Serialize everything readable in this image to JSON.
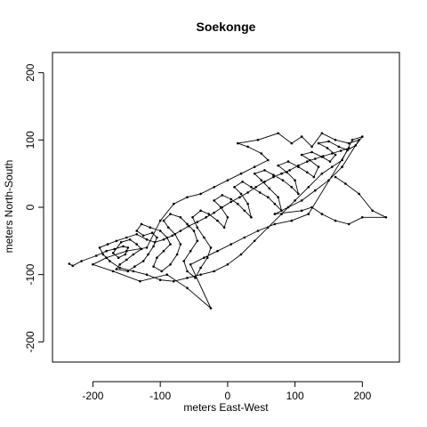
{
  "chart_data": {
    "type": "line",
    "title": "Soekonge",
    "xlabel": "meters East-West",
    "ylabel": "meters North-South",
    "xlim": [
      -260,
      255
    ],
    "ylim": [
      -230,
      230
    ],
    "xticks": [
      -200,
      -100,
      0,
      100,
      200
    ],
    "yticks": [
      -200,
      -100,
      0,
      100,
      200
    ],
    "grid": false,
    "legend": "none",
    "series": [
      {
        "style": "line-and-points",
        "color": "#000000",
        "points": [
          [
            -235,
            -84
          ],
          [
            -230,
            -87
          ],
          [
            -217,
            -80
          ],
          [
            -195,
            -72
          ],
          [
            -180,
            -65
          ],
          [
            -168,
            -62
          ],
          [
            -155,
            -58
          ],
          [
            -148,
            -60
          ],
          [
            -152,
            -70
          ],
          [
            -162,
            -75
          ],
          [
            -170,
            -68
          ],
          [
            -158,
            -52
          ],
          [
            -145,
            -48
          ],
          [
            -135,
            -55
          ],
          [
            -128,
            -62
          ],
          [
            -140,
            -70
          ],
          [
            -150,
            -78
          ],
          [
            -160,
            -85
          ],
          [
            -165,
            -92
          ],
          [
            -148,
            -95
          ],
          [
            -138,
            -88
          ],
          [
            -125,
            -80
          ],
          [
            -118,
            -70
          ],
          [
            -110,
            -58
          ],
          [
            -105,
            -45
          ],
          [
            -112,
            -38
          ],
          [
            -125,
            -42
          ],
          [
            -135,
            -35
          ],
          [
            -128,
            -25
          ],
          [
            -115,
            -30
          ],
          [
            -100,
            -35
          ],
          [
            -90,
            -45
          ],
          [
            -85,
            -55
          ],
          [
            -95,
            -65
          ],
          [
            -105,
            -75
          ],
          [
            -110,
            -88
          ],
          [
            -98,
            -95
          ],
          [
            -85,
            -85
          ],
          [
            -75,
            -70
          ],
          [
            -70,
            -55
          ],
          [
            -78,
            -40
          ],
          [
            -88,
            -30
          ],
          [
            -95,
            -20
          ],
          [
            -85,
            -10
          ],
          [
            -70,
            -15
          ],
          [
            -60,
            -25
          ],
          [
            -50,
            -35
          ],
          [
            -45,
            -50
          ],
          [
            -55,
            -65
          ],
          [
            -65,
            -80
          ],
          [
            -60,
            -95
          ],
          [
            -48,
            -105
          ],
          [
            -40,
            -90
          ],
          [
            -30,
            -75
          ],
          [
            -25,
            -60
          ],
          [
            -35,
            -45
          ],
          [
            -45,
            -30
          ],
          [
            -52,
            -15
          ],
          [
            -40,
            -5
          ],
          [
            -28,
            -10
          ],
          [
            -15,
            -20
          ],
          [
            -5,
            -30
          ],
          [
            0,
            -15
          ],
          [
            -10,
            0
          ],
          [
            -20,
            10
          ],
          [
            -8,
            18
          ],
          [
            5,
            12
          ],
          [
            15,
            5
          ],
          [
            25,
            -5
          ],
          [
            35,
            -15
          ],
          [
            30,
            5
          ],
          [
            20,
            20
          ],
          [
            10,
            30
          ],
          [
            22,
            38
          ],
          [
            35,
            30
          ],
          [
            48,
            22
          ],
          [
            60,
            15
          ],
          [
            70,
            5
          ],
          [
            80,
            -5
          ],
          [
            75,
            15
          ],
          [
            62,
            28
          ],
          [
            50,
            40
          ],
          [
            40,
            50
          ],
          [
            55,
            55
          ],
          [
            68,
            48
          ],
          [
            82,
            40
          ],
          [
            95,
            30
          ],
          [
            105,
            20
          ],
          [
            100,
            40
          ],
          [
            88,
            52
          ],
          [
            75,
            62
          ],
          [
            90,
            68
          ],
          [
            105,
            60
          ],
          [
            118,
            52
          ],
          [
            128,
            45
          ],
          [
            135,
            60
          ],
          [
            122,
            70
          ],
          [
            110,
            78
          ],
          [
            125,
            82
          ],
          [
            140,
            75
          ],
          [
            152,
            68
          ],
          [
            160,
            78
          ],
          [
            148,
            88
          ],
          [
            135,
            95
          ],
          [
            150,
            98
          ],
          [
            165,
            90
          ],
          [
            178,
            85
          ],
          [
            190,
            92
          ],
          [
            200,
            105
          ],
          [
            185,
            100
          ],
          [
            170,
            70
          ],
          [
            155,
            60
          ],
          [
            140,
            50
          ],
          [
            120,
            30
          ],
          [
            100,
            10
          ],
          [
            80,
            -10
          ],
          [
            60,
            -30
          ],
          [
            40,
            -50
          ],
          [
            20,
            -70
          ],
          [
            0,
            -85
          ],
          [
            -20,
            -95
          ],
          [
            -40,
            -100
          ],
          [
            -60,
            -105
          ],
          [
            -80,
            -110
          ],
          [
            -100,
            -108
          ],
          [
            -120,
            -100
          ],
          [
            -140,
            -95
          ],
          [
            -160,
            -90
          ],
          [
            -175,
            -80
          ],
          [
            -185,
            -70
          ],
          [
            -190,
            -60
          ],
          [
            -178,
            -55
          ],
          [
            -165,
            -50
          ],
          [
            -150,
            -45
          ],
          [
            -135,
            -40
          ],
          [
            -120,
            -48
          ],
          [
            -108,
            -52
          ],
          [
            -95,
            -48
          ],
          [
            -82,
            -42
          ],
          [
            -70,
            -35
          ],
          [
            -58,
            -28
          ],
          [
            -45,
            -22
          ],
          [
            -32,
            -15
          ],
          [
            -20,
            -8
          ],
          [
            -8,
            0
          ],
          [
            5,
            8
          ],
          [
            18,
            15
          ],
          [
            30,
            22
          ],
          [
            42,
            30
          ],
          [
            55,
            38
          ],
          [
            68,
            45
          ],
          [
            80,
            50
          ],
          [
            92,
            55
          ],
          [
            105,
            62
          ],
          [
            118,
            68
          ],
          [
            130,
            72
          ],
          [
            142,
            76
          ],
          [
            155,
            80
          ],
          [
            168,
            84
          ],
          [
            180,
            88
          ],
          [
            120,
            -10
          ],
          [
            95,
            -20
          ],
          [
            70,
            -25
          ],
          [
            45,
            -35
          ],
          [
            25,
            -45
          ],
          [
            5,
            -55
          ],
          [
            -15,
            -65
          ],
          [
            -35,
            -75
          ],
          [
            -55,
            -85
          ],
          [
            -25,
            -150
          ],
          [
            -60,
            -120
          ],
          [
            -90,
            -100
          ],
          [
            -130,
            -110
          ],
          [
            -170,
            -95
          ],
          [
            -200,
            -85
          ],
          [
            -180,
            -75
          ],
          [
            -150,
            -65
          ],
          [
            -120,
            -60
          ],
          [
            -100,
            -20
          ],
          [
            -80,
            5
          ],
          [
            -60,
            15
          ],
          [
            -40,
            20
          ],
          [
            -20,
            30
          ],
          [
            0,
            40
          ],
          [
            20,
            50
          ],
          [
            40,
            60
          ],
          [
            60,
            70
          ],
          [
            50,
            80
          ],
          [
            30,
            90
          ],
          [
            15,
            95
          ],
          [
            45,
            100
          ],
          [
            75,
            110
          ],
          [
            95,
            95
          ],
          [
            110,
            105
          ],
          [
            125,
            90
          ],
          [
            140,
            110
          ],
          [
            160,
            100
          ],
          [
            180,
            95
          ],
          [
            195,
            100
          ],
          [
            170,
            60
          ],
          [
            150,
            40
          ],
          [
            130,
            25
          ],
          [
            110,
            10
          ],
          [
            90,
            0
          ],
          [
            70,
            -10
          ],
          [
            110,
            -5
          ],
          [
            125,
            0
          ],
          [
            140,
            -10
          ],
          [
            160,
            -20
          ],
          [
            180,
            -25
          ],
          [
            200,
            -15
          ],
          [
            235,
            -15
          ],
          [
            215,
            -5
          ],
          [
            195,
            20
          ],
          [
            175,
            35
          ],
          [
            160,
            45
          ]
        ]
      }
    ]
  }
}
